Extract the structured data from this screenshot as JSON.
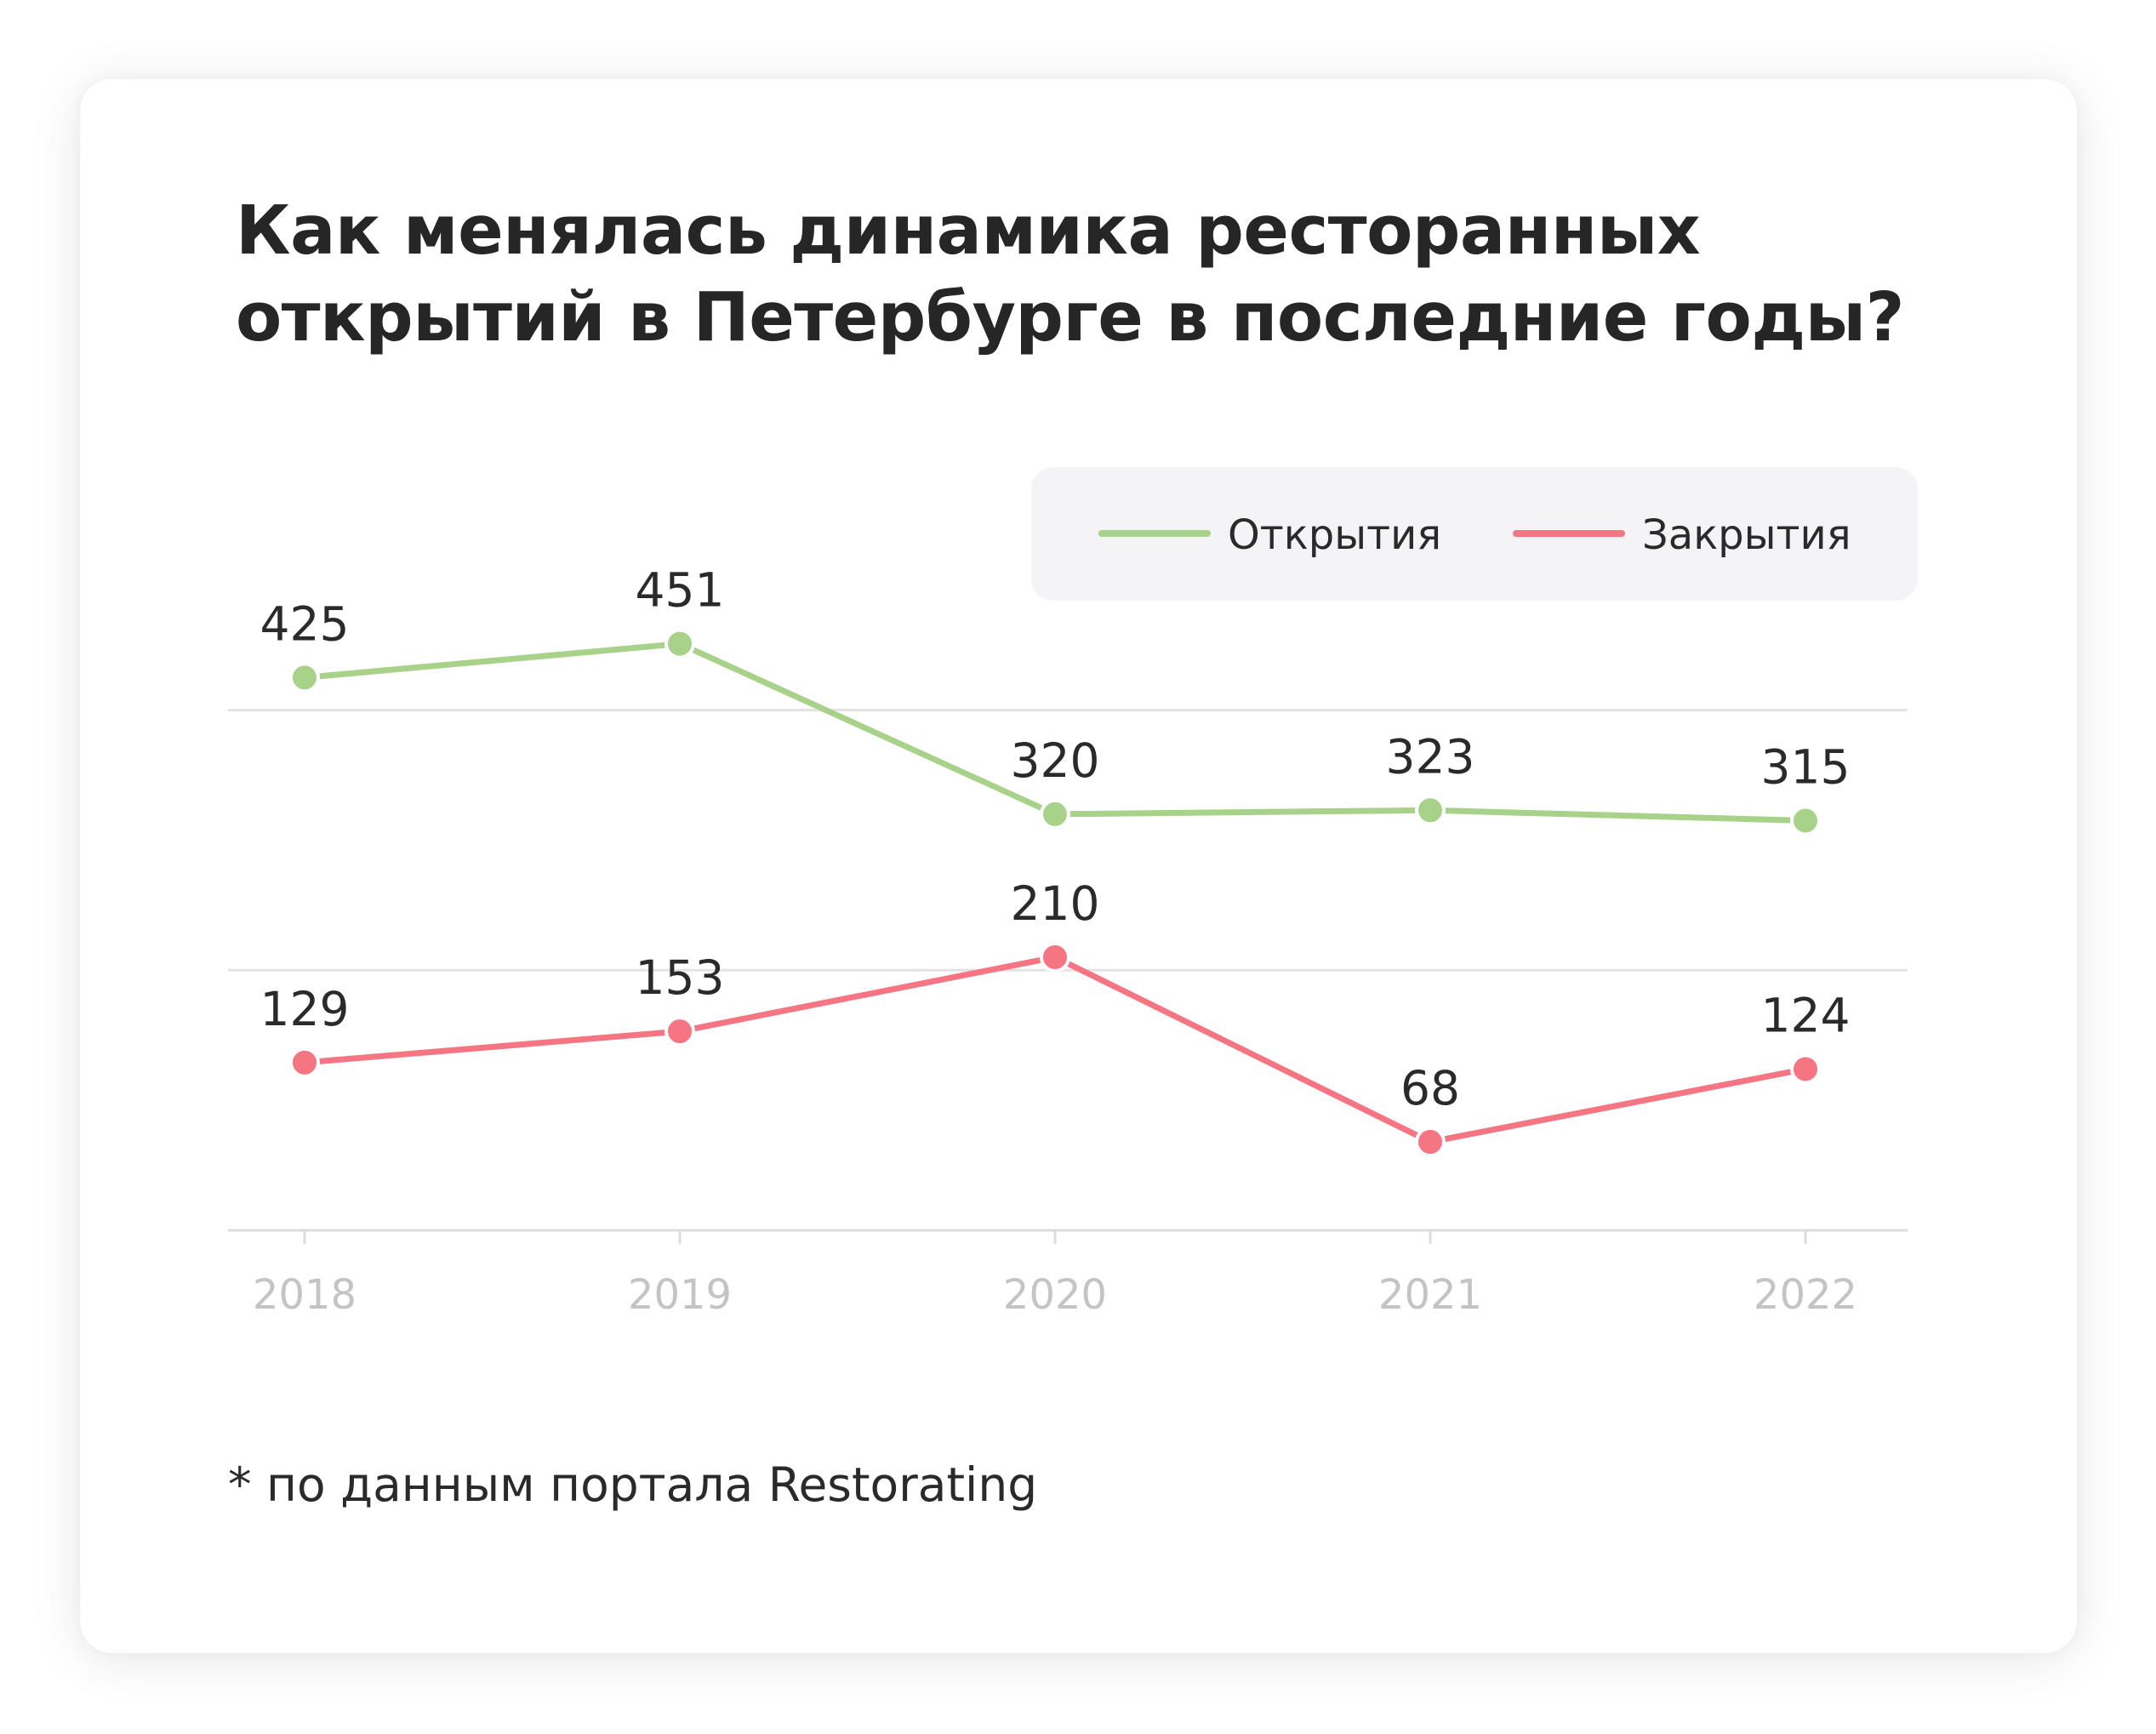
{
  "chart_data": {
    "type": "line",
    "title": "Как менялась динамика ресторанных открытий в Петербурге в последние годы?",
    "categories": [
      "2018",
      "2019",
      "2020",
      "2021",
      "2022"
    ],
    "series": [
      {
        "name": "Открытия",
        "values": [
          425,
          451,
          320,
          323,
          315
        ],
        "color": "#a8d18a"
      },
      {
        "name": "Закрытия",
        "values": [
          129,
          153,
          210,
          68,
          124
        ],
        "color": "#f57583"
      }
    ],
    "xlabel": "",
    "ylabel": "",
    "ylim": [
      0,
      600
    ],
    "grid": true,
    "legend_position": "top-right",
    "footnote": "* по данным портала Restorating"
  },
  "colors": {
    "gridline": "#e3e3e3",
    "axis": "#dcdcdc",
    "tick_text": "#c4c4c4",
    "legend_bg": "#f4f4f6",
    "text": "#262626"
  }
}
